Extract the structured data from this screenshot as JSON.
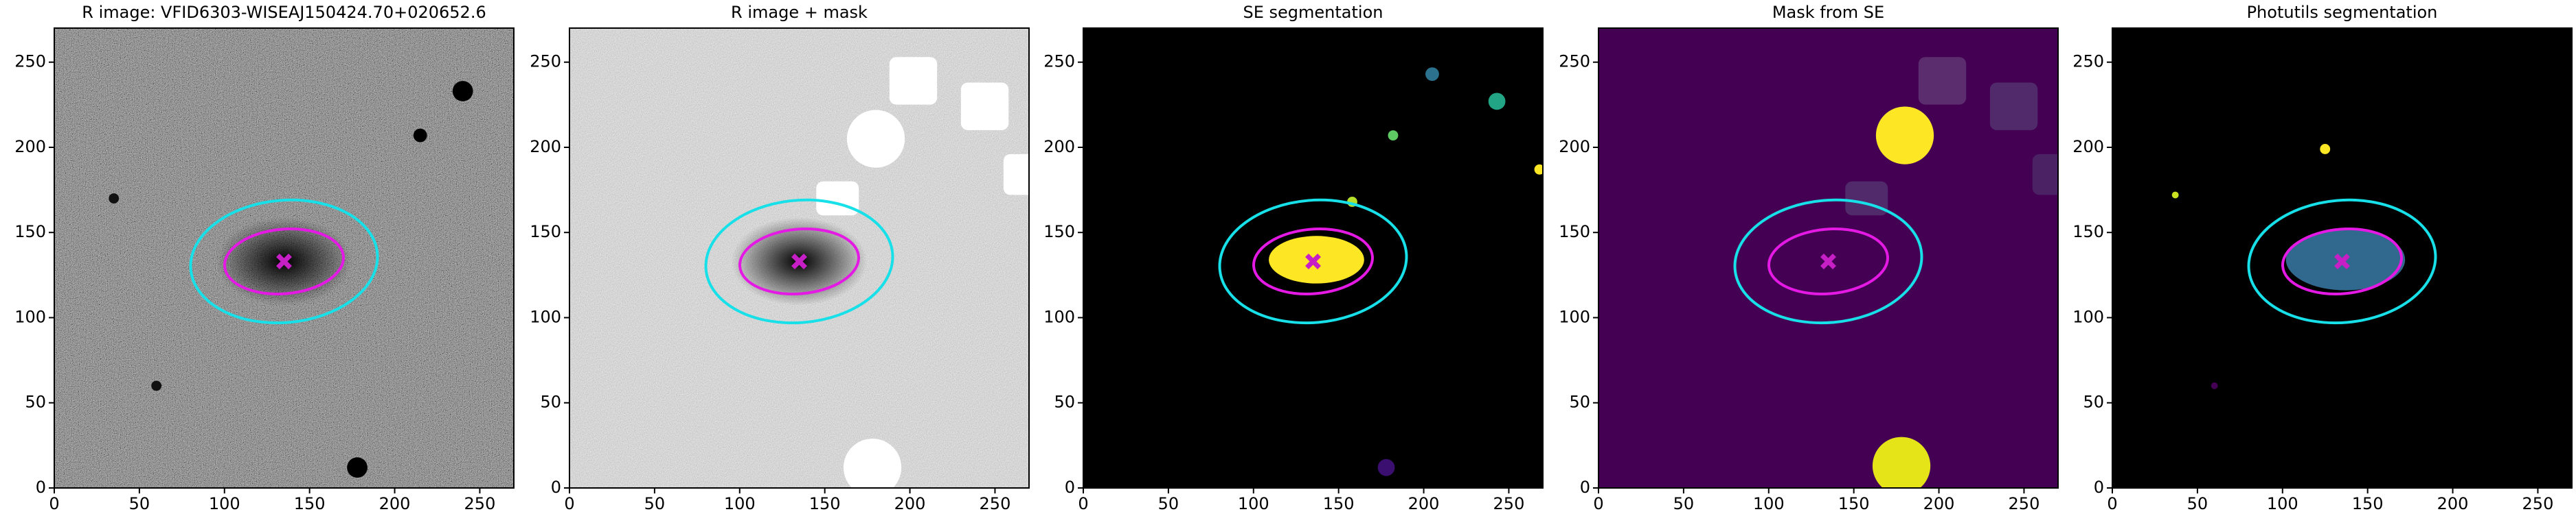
{
  "chart_data": [
    {
      "type": "image",
      "title": "R image: VFID6303-WISEAJ150424.70+020652.6",
      "xlim": [
        0,
        270
      ],
      "ylim": [
        0,
        270
      ],
      "xticks": [
        0,
        50,
        100,
        150,
        200,
        250
      ],
      "yticks": [
        0,
        50,
        100,
        150,
        200,
        250
      ]
    },
    {
      "type": "image",
      "title": "R image + mask",
      "xlim": [
        0,
        270
      ],
      "ylim": [
        0,
        270
      ],
      "xticks": [
        0,
        50,
        100,
        150,
        200,
        250
      ],
      "yticks": [
        0,
        50,
        100,
        150,
        200,
        250
      ]
    },
    {
      "type": "image",
      "title": "SE segmentation",
      "xlim": [
        0,
        270
      ],
      "ylim": [
        0,
        270
      ],
      "xticks": [
        0,
        50,
        100,
        150,
        200,
        250
      ],
      "yticks": [
        0,
        50,
        100,
        150,
        200,
        250
      ]
    },
    {
      "type": "image",
      "title": "Mask from SE",
      "xlim": [
        0,
        270
      ],
      "ylim": [
        0,
        270
      ],
      "xticks": [
        0,
        50,
        100,
        150,
        200,
        250
      ],
      "yticks": [
        0,
        50,
        100,
        150,
        200,
        250
      ]
    },
    {
      "type": "image",
      "title": "Photutils segmentation",
      "xlim": [
        0,
        270
      ],
      "ylim": [
        0,
        270
      ],
      "xticks": [
        0,
        50,
        100,
        150,
        200,
        250
      ],
      "yticks": [
        0,
        50,
        100,
        150,
        200,
        250
      ]
    }
  ]
}
